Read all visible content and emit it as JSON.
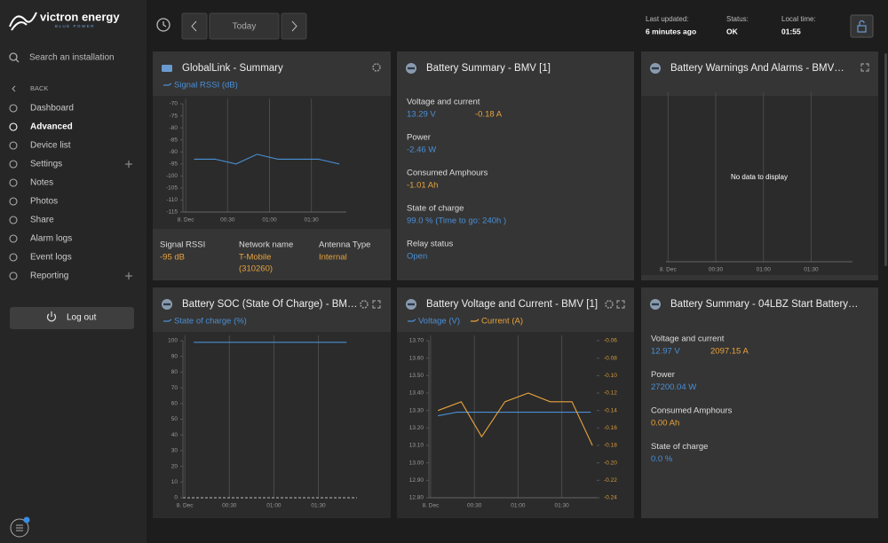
{
  "sidebar": {
    "logo": "victron energy",
    "tagline": "BLUE POWER",
    "search": "Search an installation",
    "back": "BACK",
    "menu": [
      "Dashboard",
      "Advanced",
      "Device list",
      "Settings",
      "Notes",
      "Photos",
      "Share",
      "Alarm logs",
      "Event logs",
      "Reporting"
    ],
    "logout": "Log out"
  },
  "header": {
    "today": "Today",
    "last_updated_label": "Last updated:",
    "last_updated": "6 minutes ago",
    "status_label": "Status:",
    "status": "OK",
    "local_time_label": "Local time:",
    "local_time": "01:55"
  },
  "widgets": [
    {
      "title": "GlobalLink - Summary",
      "chart": {
        "type": "line",
        "series": [
          {
            "name": "Signal RSSI (dB)",
            "color": "#4a8fd6",
            "x": [
              6,
              21,
              36,
              51,
              66,
              80,
              95,
              110
            ],
            "values": [
              -93,
              -93,
              -95,
              -91,
              -93,
              -93,
              -93,
              -95
            ]
          }
        ],
        "xlim": [
          -2,
          115
        ],
        "xticks": [
          {
            "value": 0,
            "label": "8. Dec"
          },
          {
            "value": 30,
            "label": "00:30"
          },
          {
            "value": 60,
            "label": "01:00"
          },
          {
            "value": 90,
            "label": "01:30"
          }
        ],
        "ylim": [
          -115,
          -70
        ],
        "yticks": [
          -70,
          -75,
          -80,
          -85,
          -90,
          -95,
          -100,
          -105,
          -110,
          -115
        ]
      },
      "stats": [
        {
          "label": "Signal RSSI",
          "values": [
            {
              "text": "-95 dB",
              "color": "#e8a33d"
            }
          ]
        },
        {
          "label": "Network name",
          "values": [
            {
              "text": "T-Mobile",
              "color": "#e8a33d"
            },
            {
              "text": "(310260)",
              "color": "#e8a33d"
            }
          ]
        },
        {
          "label": "Antenna Type",
          "values": [
            {
              "text": "Internal",
              "color": "#e8a33d"
            }
          ]
        }
      ]
    },
    {
      "title": "Battery Summary - BMV [1]",
      "stats": [
        {
          "label": "Voltage and current",
          "values": [
            {
              "text": "13.29 V",
              "color": "#4a8fd6"
            },
            {
              "text": "-0.18 A",
              "color": "#e8a33d"
            }
          ]
        },
        {
          "label": "Power",
          "values": [
            {
              "text": "-2.46 W",
              "color": "#4a8fd6"
            }
          ]
        },
        {
          "label": "Consumed Amphours",
          "values": [
            {
              "text": "-1.01 Ah",
              "color": "#e8a33d"
            }
          ]
        },
        {
          "label": "State of charge",
          "values": [
            {
              "text": "99.0 % (Time to go: 240h )",
              "color": "#4a8fd6"
            }
          ]
        },
        {
          "label": "Relay status",
          "values": [
            {
              "text": "Open",
              "color": "#4a8fd6"
            }
          ]
        }
      ]
    },
    {
      "title": "Battery Warnings And Alarms - BMV…",
      "chart": {
        "type": "line",
        "series": [],
        "message": "No data to display",
        "xlim": [
          -1.3,
          116
        ],
        "xticks": [
          {
            "value": 0,
            "label": "8. Dec"
          },
          {
            "value": 30,
            "label": "00:30"
          },
          {
            "value": 60,
            "label": "01:00"
          },
          {
            "value": 90,
            "label": "01:30"
          }
        ]
      }
    },
    {
      "title": "Battery SOC (State Of Charge) - BM…",
      "chart": {
        "type": "line",
        "series": [
          {
            "name": "State of charge (%)",
            "color": "#4a8fd6",
            "x": [
              6,
              109
            ],
            "values": [
              99,
              99
            ]
          }
        ],
        "xlim": [
          -1.3,
          116
        ],
        "xticks": [
          {
            "value": 0,
            "label": "8. Dec"
          },
          {
            "value": 30,
            "label": "00:30"
          },
          {
            "value": 60,
            "label": "01:00"
          },
          {
            "value": 90,
            "label": "01:30"
          }
        ],
        "ylim": [
          0,
          100
        ],
        "yticks": [
          100,
          90,
          80,
          70,
          60,
          50,
          40,
          30,
          20,
          10,
          0
        ]
      }
    },
    {
      "title": "Battery Voltage and Current - BMV [1]",
      "chart": {
        "type": "line",
        "series": [
          {
            "name": "Voltage (V)",
            "color": "#4a8fd6",
            "x": [
              5,
              18,
              30,
              50,
              70,
              90,
              110
            ],
            "values": [
              13.27,
              13.29,
              13.29,
              13.29,
              13.29,
              13.29,
              13.29
            ]
          },
          {
            "name": "Current (A)",
            "color": "#e8a33d",
            "axis": "y2",
            "x": [
              5,
              21,
              35,
              51,
              67,
              82,
              97,
              111
            ],
            "values": [
              -0.14,
              -0.13,
              -0.17,
              -0.13,
              -0.12,
              -0.13,
              -0.13,
              -0.18
            ]
          }
        ],
        "xlim": [
          -1.2,
          114
        ],
        "xticks": [
          {
            "value": 0,
            "label": "8. Dec"
          },
          {
            "value": 30,
            "label": "00:30"
          },
          {
            "value": 60,
            "label": "01:00"
          },
          {
            "value": 90,
            "label": "01:30"
          }
        ],
        "ylim": [
          12.8,
          13.7
        ],
        "yticks": [
          {
            "value": 13.7,
            "label": "13.70"
          },
          {
            "value": 13.6,
            "label": "13.60"
          },
          {
            "value": 13.5,
            "label": "13.50"
          },
          {
            "value": 13.4,
            "label": "13.40"
          },
          {
            "value": 13.3,
            "label": "13.30"
          },
          {
            "value": 13.2,
            "label": "13.20"
          },
          {
            "value": 13.1,
            "label": "13.10"
          },
          {
            "value": 13.0,
            "label": "13.00"
          },
          {
            "value": 12.9,
            "label": "12.90"
          },
          {
            "value": 12.8,
            "label": "12.80"
          }
        ],
        "y2lim": [
          -0.24,
          -0.06
        ],
        "y2ticks": [
          -0.06,
          -0.08,
          {
            "value": -0.1,
            "label": "-0.10"
          },
          -0.12,
          -0.14,
          -0.16,
          -0.18,
          {
            "value": -0.2,
            "label": "-0.20"
          },
          -0.22,
          -0.24
        ]
      }
    },
    {
      "title": "Battery Summary - 04LBZ Start Battery…",
      "stats": [
        {
          "label": "Voltage and current",
          "values": [
            {
              "text": "12.97 V",
              "color": "#4a8fd6"
            },
            {
              "text": "2097.15 A",
              "color": "#e8a33d"
            }
          ]
        },
        {
          "label": "Power",
          "values": [
            {
              "text": "27200.04 W",
              "color": "#4a8fd6"
            }
          ]
        },
        {
          "label": "Consumed Amphours",
          "values": [
            {
              "text": "0.00 Ah",
              "color": "#e8a33d"
            }
          ]
        },
        {
          "label": "State of charge",
          "values": [
            {
              "text": "0.0 %",
              "color": "#4a8fd6"
            }
          ]
        }
      ]
    }
  ]
}
